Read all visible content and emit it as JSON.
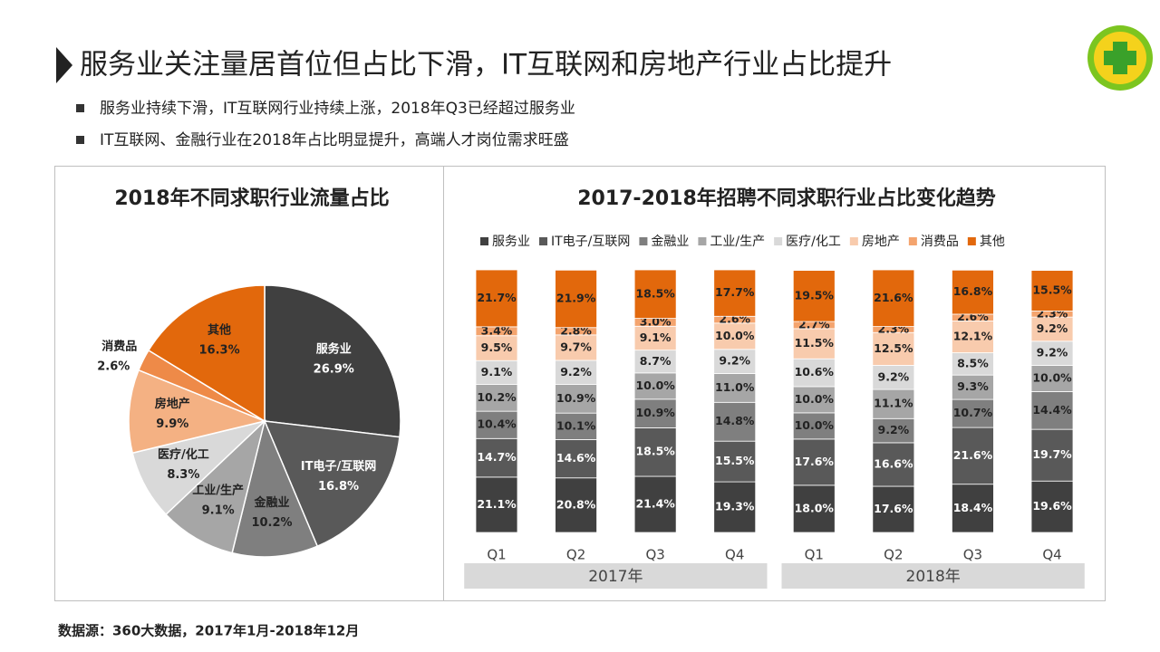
{
  "header": {
    "title": "服务业关注量居首位但占比下滑，IT互联网和房地产行业占比提升",
    "bullets": [
      "服务业持续下滑，IT互联网行业持续上涨，2018年Q3已经超过服务业",
      "IT互联网、金融行业在2018年占比明显提升，高端人才岗位需求旺盛"
    ]
  },
  "chart_data": [
    {
      "type": "pie",
      "title": "2018年不同求职行业流量占比",
      "categories": [
        "服务业",
        "IT电子/互联网",
        "金融业",
        "工业/生产",
        "医疗/化工",
        "房地产",
        "消费品",
        "其他"
      ],
      "values": [
        26.9,
        16.8,
        10.2,
        9.1,
        8.3,
        9.9,
        2.6,
        16.3
      ],
      "value_labels": [
        "26.9%",
        "16.8%",
        "10.2%",
        "9.1%",
        "8.3%",
        "9.9%",
        "2.6%",
        "16.3%"
      ],
      "colors": [
        "#404040",
        "#595959",
        "#7f7f7f",
        "#a6a6a6",
        "#d9d9d9",
        "#f4b183",
        "#ee8a48",
        "#e2680c"
      ]
    },
    {
      "type": "stacked_bar",
      "title": "2017-2018年招聘不同求职行业占比变化趋势",
      "legend": "top",
      "groups": [
        {
          "name": "2017年",
          "categories": [
            "Q1",
            "Q2",
            "Q3",
            "Q4"
          ]
        },
        {
          "name": "2018年",
          "categories": [
            "Q1",
            "Q2",
            "Q3",
            "Q4"
          ]
        }
      ],
      "series": [
        {
          "name": "服务业",
          "color": "#404040",
          "values": [
            21.1,
            20.8,
            21.4,
            19.3,
            18.0,
            17.6,
            18.4,
            19.6
          ],
          "value_labels": [
            "21.1%",
            "20.8%",
            "21.4%",
            "19.3%",
            "18.0%",
            "17.6%",
            "18.4%",
            "19.6%"
          ]
        },
        {
          "name": "IT电子/互联网",
          "color": "#595959",
          "values": [
            14.7,
            14.6,
            18.5,
            15.5,
            17.6,
            16.6,
            21.6,
            19.7
          ],
          "value_labels": [
            "14.7%",
            "14.6%",
            "18.5%",
            "15.5%",
            "17.6%",
            "16.6%",
            "21.6%",
            "19.7%"
          ]
        },
        {
          "name": "金融业",
          "color": "#7f7f7f",
          "values": [
            10.4,
            10.1,
            10.9,
            14.8,
            10.0,
            9.2,
            10.7,
            14.4
          ],
          "value_labels": [
            "10.4%",
            "10.1%",
            "10.9%",
            "14.8%",
            "10.0%",
            "9.2%",
            "10.7%",
            "14.4%"
          ]
        },
        {
          "name": "工业/生产",
          "color": "#a6a6a6",
          "values": [
            10.2,
            10.9,
            10.0,
            11.0,
            10.0,
            11.1,
            9.3,
            10.0
          ],
          "value_labels": [
            "10.2%",
            "10.9%",
            "10.0%",
            "11.0%",
            "10.0%",
            "11.1%",
            "9.3%",
            "10.0%"
          ]
        },
        {
          "name": "医疗/化工",
          "color": "#d9d9d9",
          "values": [
            9.1,
            9.2,
            8.7,
            9.2,
            10.6,
            9.2,
            8.5,
            9.2
          ],
          "value_labels": [
            "9.1%",
            "9.2%",
            "8.7%",
            "9.2%",
            "10.6%",
            "9.2%",
            "8.5%",
            "9.2%"
          ]
        },
        {
          "name": "房地产",
          "color": "#f8cbad",
          "values": [
            9.5,
            9.7,
            9.1,
            10.0,
            11.5,
            12.5,
            12.1,
            9.2
          ],
          "value_labels": [
            "9.5%",
            "9.7%",
            "9.1%",
            "10.0%",
            "11.5%",
            "12.5%",
            "12.1%",
            "9.2%"
          ]
        },
        {
          "name": "消费品",
          "color": "#f4a46e",
          "values": [
            3.4,
            2.8,
            3.0,
            2.6,
            2.7,
            2.3,
            2.6,
            2.3
          ],
          "value_labels": [
            "3.4%",
            "2.8%",
            "3.0%",
            "2.6%",
            "2.7%",
            "2.3%",
            "2.6%",
            "2.3%"
          ]
        },
        {
          "name": "其他",
          "color": "#e2680c",
          "values": [
            21.7,
            21.9,
            18.5,
            17.7,
            19.5,
            21.6,
            16.8,
            15.5
          ],
          "value_labels": [
            "21.7%",
            "21.9%",
            "18.5%",
            "17.7%",
            "19.5%",
            "21.6%",
            "16.8%",
            "15.5%"
          ]
        }
      ]
    }
  ],
  "source": "数据源：360大数据，2017年1月-2018年12月"
}
